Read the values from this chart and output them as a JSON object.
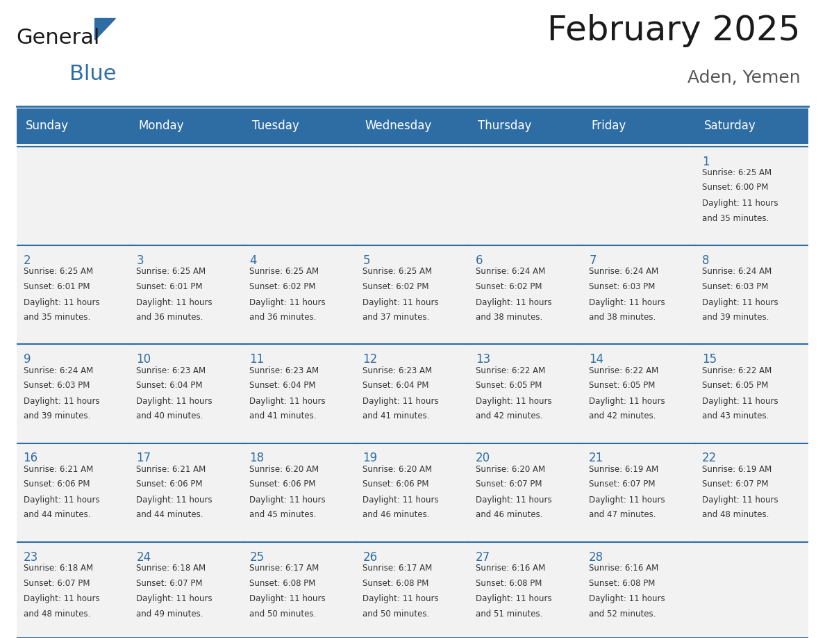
{
  "title": "February 2025",
  "location": "Aden, Yemen",
  "header_bg": "#2E6DA4",
  "header_text_color": "#FFFFFF",
  "cell_bg": "#F2F2F2",
  "cell_bg_alt": "#FFFFFF",
  "day_number_color": "#2E6DA4",
  "text_color": "#333333",
  "line_color": "#2E6DA4",
  "days_of_week": [
    "Sunday",
    "Monday",
    "Tuesday",
    "Wednesday",
    "Thursday",
    "Friday",
    "Saturday"
  ],
  "weeks": [
    [
      {
        "day": null,
        "sunrise": null,
        "sunset": null,
        "daylight": null
      },
      {
        "day": null,
        "sunrise": null,
        "sunset": null,
        "daylight": null
      },
      {
        "day": null,
        "sunrise": null,
        "sunset": null,
        "daylight": null
      },
      {
        "day": null,
        "sunrise": null,
        "sunset": null,
        "daylight": null
      },
      {
        "day": null,
        "sunrise": null,
        "sunset": null,
        "daylight": null
      },
      {
        "day": null,
        "sunrise": null,
        "sunset": null,
        "daylight": null
      },
      {
        "day": 1,
        "sunrise": "6:25 AM",
        "sunset": "6:00 PM",
        "daylight": "11 hours and 35 minutes."
      }
    ],
    [
      {
        "day": 2,
        "sunrise": "6:25 AM",
        "sunset": "6:01 PM",
        "daylight": "11 hours and 35 minutes."
      },
      {
        "day": 3,
        "sunrise": "6:25 AM",
        "sunset": "6:01 PM",
        "daylight": "11 hours and 36 minutes."
      },
      {
        "day": 4,
        "sunrise": "6:25 AM",
        "sunset": "6:02 PM",
        "daylight": "11 hours and 36 minutes."
      },
      {
        "day": 5,
        "sunrise": "6:25 AM",
        "sunset": "6:02 PM",
        "daylight": "11 hours and 37 minutes."
      },
      {
        "day": 6,
        "sunrise": "6:24 AM",
        "sunset": "6:02 PM",
        "daylight": "11 hours and 38 minutes."
      },
      {
        "day": 7,
        "sunrise": "6:24 AM",
        "sunset": "6:03 PM",
        "daylight": "11 hours and 38 minutes."
      },
      {
        "day": 8,
        "sunrise": "6:24 AM",
        "sunset": "6:03 PM",
        "daylight": "11 hours and 39 minutes."
      }
    ],
    [
      {
        "day": 9,
        "sunrise": "6:24 AM",
        "sunset": "6:03 PM",
        "daylight": "11 hours and 39 minutes."
      },
      {
        "day": 10,
        "sunrise": "6:23 AM",
        "sunset": "6:04 PM",
        "daylight": "11 hours and 40 minutes."
      },
      {
        "day": 11,
        "sunrise": "6:23 AM",
        "sunset": "6:04 PM",
        "daylight": "11 hours and 41 minutes."
      },
      {
        "day": 12,
        "sunrise": "6:23 AM",
        "sunset": "6:04 PM",
        "daylight": "11 hours and 41 minutes."
      },
      {
        "day": 13,
        "sunrise": "6:22 AM",
        "sunset": "6:05 PM",
        "daylight": "11 hours and 42 minutes."
      },
      {
        "day": 14,
        "sunrise": "6:22 AM",
        "sunset": "6:05 PM",
        "daylight": "11 hours and 42 minutes."
      },
      {
        "day": 15,
        "sunrise": "6:22 AM",
        "sunset": "6:05 PM",
        "daylight": "11 hours and 43 minutes."
      }
    ],
    [
      {
        "day": 16,
        "sunrise": "6:21 AM",
        "sunset": "6:06 PM",
        "daylight": "11 hours and 44 minutes."
      },
      {
        "day": 17,
        "sunrise": "6:21 AM",
        "sunset": "6:06 PM",
        "daylight": "11 hours and 44 minutes."
      },
      {
        "day": 18,
        "sunrise": "6:20 AM",
        "sunset": "6:06 PM",
        "daylight": "11 hours and 45 minutes."
      },
      {
        "day": 19,
        "sunrise": "6:20 AM",
        "sunset": "6:06 PM",
        "daylight": "11 hours and 46 minutes."
      },
      {
        "day": 20,
        "sunrise": "6:20 AM",
        "sunset": "6:07 PM",
        "daylight": "11 hours and 46 minutes."
      },
      {
        "day": 21,
        "sunrise": "6:19 AM",
        "sunset": "6:07 PM",
        "daylight": "11 hours and 47 minutes."
      },
      {
        "day": 22,
        "sunrise": "6:19 AM",
        "sunset": "6:07 PM",
        "daylight": "11 hours and 48 minutes."
      }
    ],
    [
      {
        "day": 23,
        "sunrise": "6:18 AM",
        "sunset": "6:07 PM",
        "daylight": "11 hours and 48 minutes."
      },
      {
        "day": 24,
        "sunrise": "6:18 AM",
        "sunset": "6:07 PM",
        "daylight": "11 hours and 49 minutes."
      },
      {
        "day": 25,
        "sunrise": "6:17 AM",
        "sunset": "6:08 PM",
        "daylight": "11 hours and 50 minutes."
      },
      {
        "day": 26,
        "sunrise": "6:17 AM",
        "sunset": "6:08 PM",
        "daylight": "11 hours and 50 minutes."
      },
      {
        "day": 27,
        "sunrise": "6:16 AM",
        "sunset": "6:08 PM",
        "daylight": "11 hours and 51 minutes."
      },
      {
        "day": 28,
        "sunrise": "6:16 AM",
        "sunset": "6:08 PM",
        "daylight": "11 hours and 52 minutes."
      },
      {
        "day": null,
        "sunrise": null,
        "sunset": null,
        "daylight": null
      }
    ]
  ],
  "logo_text_general": "General",
  "logo_text_blue": "Blue",
  "logo_color_general": "#1a1a1a",
  "logo_color_blue": "#2E6DA4",
  "logo_triangle_color": "#2E6DA4"
}
